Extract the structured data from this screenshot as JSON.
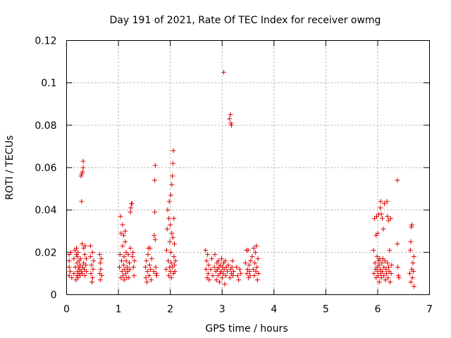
{
  "chart_data": {
    "type": "scatter",
    "title": "Day 191 of 2021, Rate Of TEC Index for receiver owmg",
    "xlabel": "GPS time / hours",
    "ylabel": "ROTI / TECUs",
    "xlim": [
      0,
      7
    ],
    "ylim": [
      0,
      0.12
    ],
    "x_ticks": [
      0,
      1,
      2,
      3,
      4,
      5,
      6,
      7
    ],
    "x_tick_labels": [
      "0",
      "1",
      "2",
      "3",
      "4",
      "5",
      "6",
      "7"
    ],
    "y_ticks": [
      0,
      0.02,
      0.04,
      0.06,
      0.08,
      0.1,
      0.12
    ],
    "y_tick_labels": [
      "0",
      "0.02",
      "0.04",
      "0.06",
      "0.08",
      "0.1",
      "0.12"
    ],
    "grid": true,
    "legend": "none",
    "marker": "plus",
    "color": "#e00000",
    "series": [
      {
        "points": [
          [
            0.05,
            0.009
          ],
          [
            0.05,
            0.013
          ],
          [
            0.05,
            0.016
          ],
          [
            0.05,
            0.019
          ],
          [
            0.07,
            0.011
          ],
          [
            0.08,
            0.02
          ],
          [
            0.1,
            0.008
          ],
          [
            0.14,
            0.01
          ],
          [
            0.14,
            0.017
          ],
          [
            0.16,
            0.021
          ],
          [
            0.17,
            0.013
          ],
          [
            0.18,
            0.007
          ],
          [
            0.19,
            0.019
          ],
          [
            0.19,
            0.022
          ],
          [
            0.2,
            0.009
          ],
          [
            0.2,
            0.015
          ],
          [
            0.21,
            0.011
          ],
          [
            0.21,
            0.018
          ],
          [
            0.22,
            0.008
          ],
          [
            0.22,
            0.02
          ],
          [
            0.23,
            0.013
          ],
          [
            0.24,
            0.01
          ],
          [
            0.24,
            0.016
          ],
          [
            0.25,
            0.012
          ],
          [
            0.26,
            0.009
          ],
          [
            0.26,
            0.014
          ],
          [
            0.27,
            0.017
          ],
          [
            0.28,
            0.011
          ],
          [
            0.28,
            0.056
          ],
          [
            0.29,
            0.044
          ],
          [
            0.29,
            0.057
          ],
          [
            0.3,
            0.01
          ],
          [
            0.3,
            0.024
          ],
          [
            0.31,
            0.058
          ],
          [
            0.31,
            0.013
          ],
          [
            0.32,
            0.063
          ],
          [
            0.32,
            0.06
          ],
          [
            0.33,
            0.022
          ],
          [
            0.33,
            0.015
          ],
          [
            0.34,
            0.012
          ],
          [
            0.35,
            0.009
          ],
          [
            0.35,
            0.019
          ],
          [
            0.36,
            0.023
          ],
          [
            0.37,
            0.014
          ],
          [
            0.38,
            0.011
          ],
          [
            0.38,
            0.017
          ],
          [
            0.46,
            0.023
          ],
          [
            0.46,
            0.018
          ],
          [
            0.47,
            0.01
          ],
          [
            0.48,
            0.014
          ],
          [
            0.49,
            0.006
          ],
          [
            0.5,
            0.02
          ],
          [
            0.5,
            0.008
          ],
          [
            0.51,
            0.012
          ],
          [
            0.52,
            0.016
          ],
          [
            0.64,
            0.019
          ],
          [
            0.64,
            0.01
          ],
          [
            0.65,
            0.015
          ],
          [
            0.65,
            0.007
          ],
          [
            0.66,
            0.012
          ],
          [
            0.67,
            0.017
          ],
          [
            0.68,
            0.009
          ],
          [
            1.02,
            0.013
          ],
          [
            1.03,
            0.019
          ],
          [
            1.04,
            0.037
          ],
          [
            1.05,
            0.008
          ],
          [
            1.05,
            0.029
          ],
          [
            1.06,
            0.016
          ],
          [
            1.07,
            0.011
          ],
          [
            1.08,
            0.033
          ],
          [
            1.08,
            0.023
          ],
          [
            1.09,
            0.009
          ],
          [
            1.1,
            0.014
          ],
          [
            1.1,
            0.028
          ],
          [
            1.11,
            0.007
          ],
          [
            1.11,
            0.018
          ],
          [
            1.12,
            0.012
          ],
          [
            1.13,
            0.025
          ],
          [
            1.13,
            0.03
          ],
          [
            1.14,
            0.01
          ],
          [
            1.15,
            0.016
          ],
          [
            1.15,
            0.02
          ],
          [
            1.16,
            0.008
          ],
          [
            1.17,
            0.013
          ],
          [
            1.18,
            0.011
          ],
          [
            1.19,
            0.019
          ],
          [
            1.2,
            0.008
          ],
          [
            1.21,
            0.015
          ],
          [
            1.22,
            0.012
          ],
          [
            1.23,
            0.022
          ],
          [
            1.23,
            0.039
          ],
          [
            1.24,
            0.041
          ],
          [
            1.25,
            0.043
          ],
          [
            1.26,
            0.043
          ],
          [
            1.27,
            0.018
          ],
          [
            1.28,
            0.02
          ],
          [
            1.29,
            0.013
          ],
          [
            1.3,
            0.009
          ],
          [
            1.31,
            0.016
          ],
          [
            1.52,
            0.013
          ],
          [
            1.53,
            0.008
          ],
          [
            1.54,
            0.016
          ],
          [
            1.55,
            0.006
          ],
          [
            1.56,
            0.011
          ],
          [
            1.57,
            0.019
          ],
          [
            1.58,
            0.022
          ],
          [
            1.59,
            0.009
          ],
          [
            1.6,
            0.014
          ],
          [
            1.61,
            0.022
          ],
          [
            1.62,
            0.012
          ],
          [
            1.63,
            0.007
          ],
          [
            1.64,
            0.017
          ],
          [
            1.68,
            0.011
          ],
          [
            1.69,
            0.028
          ],
          [
            1.7,
            0.039
          ],
          [
            1.7,
            0.054
          ],
          [
            1.71,
            0.061
          ],
          [
            1.71,
            0.026
          ],
          [
            1.72,
            0.013
          ],
          [
            1.73,
            0.01
          ],
          [
            1.74,
            0.009
          ],
          [
            1.92,
            0.012
          ],
          [
            1.93,
            0.021
          ],
          [
            1.94,
            0.031
          ],
          [
            1.95,
            0.04
          ],
          [
            1.96,
            0.016
          ],
          [
            1.97,
            0.036
          ],
          [
            1.97,
            0.009
          ],
          [
            1.98,
            0.044
          ],
          [
            1.99,
            0.013
          ],
          [
            1.99,
            0.025
          ],
          [
            2.0,
            0.033
          ],
          [
            2.0,
            0.011
          ],
          [
            2.01,
            0.047
          ],
          [
            2.01,
            0.02
          ],
          [
            2.02,
            0.015
          ],
          [
            2.02,
            0.008
          ],
          [
            2.03,
            0.029
          ],
          [
            2.03,
            0.052
          ],
          [
            2.04,
            0.056
          ],
          [
            2.04,
            0.013
          ],
          [
            2.05,
            0.062
          ],
          [
            2.05,
            0.027
          ],
          [
            2.06,
            0.068
          ],
          [
            2.06,
            0.01
          ],
          [
            2.07,
            0.018
          ],
          [
            2.07,
            0.036
          ],
          [
            2.08,
            0.014
          ],
          [
            2.08,
            0.024
          ],
          [
            2.09,
            0.011
          ],
          [
            2.1,
            0.016
          ],
          [
            2.68,
            0.021
          ],
          [
            2.69,
            0.012
          ],
          [
            2.7,
            0.016
          ],
          [
            2.71,
            0.008
          ],
          [
            2.72,
            0.019
          ],
          [
            2.73,
            0.01
          ],
          [
            2.74,
            0.014
          ],
          [
            2.75,
            0.007
          ],
          [
            2.78,
            0.012
          ],
          [
            2.8,
            0.017
          ],
          [
            2.82,
            0.009
          ],
          [
            2.85,
            0.013
          ],
          [
            2.86,
            0.019
          ],
          [
            2.88,
            0.011
          ],
          [
            2.89,
            0.007
          ],
          [
            2.9,
            0.015
          ],
          [
            2.91,
            0.012
          ],
          [
            2.92,
            0.009
          ],
          [
            2.93,
            0.016
          ],
          [
            2.94,
            0.013
          ],
          [
            2.95,
            0.006
          ],
          [
            2.96,
            0.01
          ],
          [
            2.97,
            0.014
          ],
          [
            2.98,
            0.011
          ],
          [
            2.99,
            0.017
          ],
          [
            3.0,
            0.008
          ],
          [
            3.01,
            0.013
          ],
          [
            3.02,
            0.01
          ],
          [
            3.03,
            0.105
          ],
          [
            3.03,
            0.015
          ],
          [
            3.04,
            0.012
          ],
          [
            3.05,
            0.005
          ],
          [
            3.06,
            0.016
          ],
          [
            3.07,
            0.009
          ],
          [
            3.08,
            0.013
          ],
          [
            3.1,
            0.011
          ],
          [
            3.12,
            0.014
          ],
          [
            3.14,
            0.083
          ],
          [
            3.15,
            0.008
          ],
          [
            3.16,
            0.085
          ],
          [
            3.16,
            0.012
          ],
          [
            3.17,
            0.081
          ],
          [
            3.18,
            0.08
          ],
          [
            3.18,
            0.01
          ],
          [
            3.19,
            0.013
          ],
          [
            3.2,
            0.016
          ],
          [
            3.21,
            0.009
          ],
          [
            3.22,
            0.011
          ],
          [
            3.28,
            0.013
          ],
          [
            3.3,
            0.009
          ],
          [
            3.32,
            0.007
          ],
          [
            3.34,
            0.012
          ],
          [
            3.36,
            0.01
          ],
          [
            3.45,
            0.015
          ],
          [
            3.47,
            0.021
          ],
          [
            3.48,
            0.01
          ],
          [
            3.49,
            0.012
          ],
          [
            3.5,
            0.021
          ],
          [
            3.51,
            0.008
          ],
          [
            3.52,
            0.014
          ],
          [
            3.53,
            0.011
          ],
          [
            3.54,
            0.009
          ],
          [
            3.55,
            0.016
          ],
          [
            3.58,
            0.018
          ],
          [
            3.6,
            0.012
          ],
          [
            3.61,
            0.022
          ],
          [
            3.62,
            0.009
          ],
          [
            3.63,
            0.015
          ],
          [
            3.64,
            0.02
          ],
          [
            3.65,
            0.011
          ],
          [
            3.66,
            0.023
          ],
          [
            3.67,
            0.013
          ],
          [
            3.68,
            0.007
          ],
          [
            3.69,
            0.017
          ],
          [
            3.7,
            0.01
          ],
          [
            5.92,
            0.021
          ],
          [
            5.93,
            0.01
          ],
          [
            5.94,
            0.036
          ],
          [
            5.95,
            0.015
          ],
          [
            5.96,
            0.012
          ],
          [
            5.97,
            0.028
          ],
          [
            5.97,
            0.008
          ],
          [
            5.98,
            0.037
          ],
          [
            5.99,
            0.018
          ],
          [
            5.99,
            0.013
          ],
          [
            6.0,
            0.011
          ],
          [
            6.0,
            0.029
          ],
          [
            6.01,
            0.009
          ],
          [
            6.02,
            0.016
          ],
          [
            6.02,
            0.038
          ],
          [
            6.03,
            0.014
          ],
          [
            6.03,
            0.006
          ],
          [
            6.04,
            0.017
          ],
          [
            6.05,
            0.012
          ],
          [
            6.05,
            0.041
          ],
          [
            6.06,
            0.01
          ],
          [
            6.06,
            0.044
          ],
          [
            6.07,
            0.008
          ],
          [
            6.07,
            0.038
          ],
          [
            6.08,
            0.015
          ],
          [
            6.09,
            0.036
          ],
          [
            6.09,
            0.011
          ],
          [
            6.1,
            0.017
          ],
          [
            6.11,
            0.031
          ],
          [
            6.12,
            0.009
          ],
          [
            6.12,
            0.013
          ],
          [
            6.13,
            0.043
          ],
          [
            6.14,
            0.016
          ],
          [
            6.15,
            0.007
          ],
          [
            6.16,
            0.012
          ],
          [
            6.17,
            0.01
          ],
          [
            6.18,
            0.044
          ],
          [
            6.19,
            0.015
          ],
          [
            6.19,
            0.037
          ],
          [
            6.2,
            0.008
          ],
          [
            6.21,
            0.013
          ],
          [
            6.21,
            0.035
          ],
          [
            6.22,
            0.011
          ],
          [
            6.23,
            0.021
          ],
          [
            6.24,
            0.006
          ],
          [
            6.25,
            0.036
          ],
          [
            6.26,
            0.01
          ],
          [
            6.27,
            0.014
          ],
          [
            6.38,
            0.054
          ],
          [
            6.38,
            0.024
          ],
          [
            6.39,
            0.013
          ],
          [
            6.4,
            0.009
          ],
          [
            6.41,
            0.008
          ],
          [
            6.62,
            0.01
          ],
          [
            6.63,
            0.021
          ],
          [
            6.64,
            0.025
          ],
          [
            6.64,
            0.006
          ],
          [
            6.65,
            0.032
          ],
          [
            6.66,
            0.012
          ],
          [
            6.66,
            0.033
          ],
          [
            6.67,
            0.008
          ],
          [
            6.68,
            0.015
          ],
          [
            6.69,
            0.011
          ],
          [
            6.7,
            0.004
          ],
          [
            6.7,
            0.018
          ]
        ]
      }
    ]
  }
}
